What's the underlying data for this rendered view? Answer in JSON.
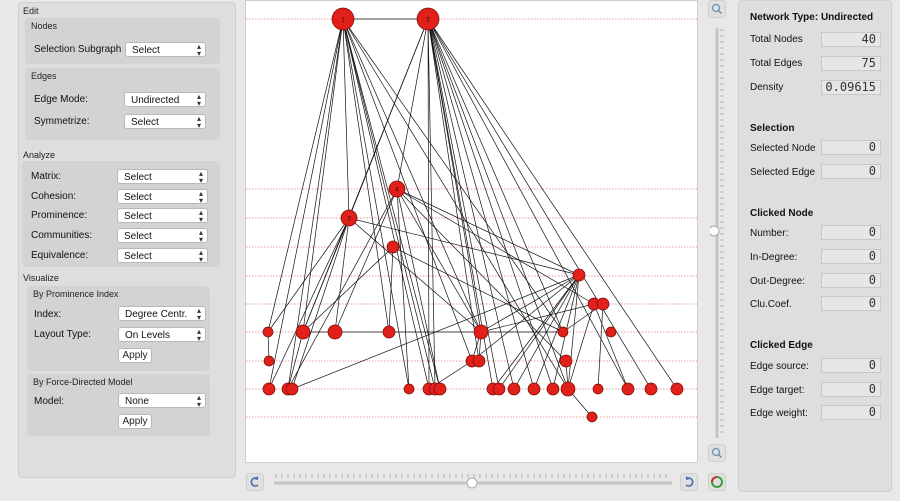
{
  "left": {
    "edit_header": "Edit",
    "nodes_header": "Nodes",
    "selection_subgraph_label": "Selection Subgraph",
    "selection_subgraph_value": "Select",
    "edges_header": "Edges",
    "edge_mode_label": "Edge Mode:",
    "edge_mode_value": "Undirected",
    "symmetrize_label": "Symmetrize:",
    "symmetrize_value": "Select",
    "analyze_header": "Analyze",
    "analyze_items": [
      {
        "label": "Matrix:",
        "value": "Select"
      },
      {
        "label": "Cohesion:",
        "value": "Select"
      },
      {
        "label": "Prominence:",
        "value": "Select"
      },
      {
        "label": "Communities:",
        "value": "Select"
      },
      {
        "label": "Equivalence:",
        "value": "Select"
      }
    ],
    "visualize_header": "Visualize",
    "prominence_header": "By Prominence Index",
    "index_label": "Index:",
    "index_value": "Degree Centr.",
    "layout_type_label": "Layout Type:",
    "layout_type_value": "On Levels",
    "apply_label": "Apply",
    "force_header": "By Force-Directed Model",
    "model_label": "Model:",
    "model_value": "None",
    "apply2_label": "Apply"
  },
  "right": {
    "network_type": "Network Type: Undirected",
    "total_nodes_label": "Total Nodes",
    "total_nodes": "40",
    "total_edges_label": "Total Edges",
    "total_edges": "75",
    "density_label": "Density",
    "density": "0.09615",
    "selection_header": "Selection",
    "selected_node_label": "Selected Node",
    "selected_node": "0",
    "selected_edge_label": "Selected Edge",
    "selected_edge": "0",
    "clicked_node_header": "Clicked Node",
    "number_label": "Number:",
    "number": "0",
    "in_degree_label": "In-Degree:",
    "in_degree": "0",
    "out_degree_label": "Out-Degree:",
    "out_degree": "0",
    "clu_coef_label": "Clu.Coef.",
    "clu_coef": "0",
    "clicked_edge_header": "Clicked Edge",
    "edge_source_label": "Edge source:",
    "edge_source": "0",
    "edge_target_label": "Edge target:",
    "edge_target": "0",
    "edge_weight_label": "Edge weight:",
    "edge_weight": "0"
  },
  "graph": {
    "node_color": "#e0201a",
    "edge_color": "#111111",
    "level_line_color": "#d04040",
    "nodes": [
      {
        "id": 1,
        "label": "1"
      },
      {
        "id": 2,
        "label": "2"
      },
      {
        "id": 3,
        "label": "3"
      },
      {
        "id": 4,
        "label": "4"
      }
    ]
  }
}
